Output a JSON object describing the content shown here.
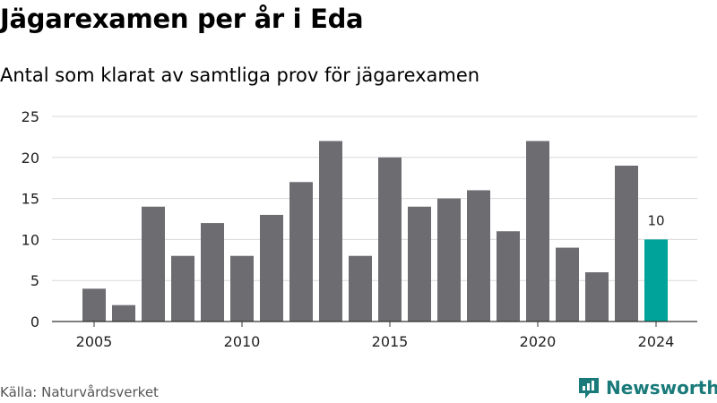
{
  "header": {
    "title": "Jägarexamen per år i Eda",
    "subtitle": "Antal som klarat av samtliga prov för jägarexamen"
  },
  "footer": {
    "source": "Källa: Naturvårdsverket",
    "brand": "Newsworthy",
    "brand_icon": "newsworthy-logo-icon"
  },
  "colors": {
    "bar": "#6d6c71",
    "highlight": "#00a39a",
    "grid": "#d9d9d9",
    "brand": "#1a7a7a"
  },
  "chart_data": {
    "type": "bar",
    "title": "Jägarexamen per år i Eda",
    "subtitle": "Antal som klarat av samtliga prov för jägarexamen",
    "xlabel": "",
    "ylabel": "",
    "x": [
      2005,
      2006,
      2007,
      2008,
      2009,
      2010,
      2011,
      2012,
      2013,
      2014,
      2015,
      2016,
      2017,
      2018,
      2019,
      2020,
      2021,
      2022,
      2023,
      2024
    ],
    "values": [
      4,
      2,
      14,
      8,
      12,
      8,
      13,
      17,
      22,
      8,
      20,
      14,
      15,
      16,
      11,
      22,
      9,
      6,
      19,
      10
    ],
    "ylim": [
      0,
      25
    ],
    "yticks": [
      0,
      5,
      10,
      15,
      20,
      25
    ],
    "xticks": [
      2005,
      2010,
      2015,
      2020,
      2024
    ],
    "highlight": {
      "x": 2024,
      "label": "10"
    },
    "grid": true
  }
}
